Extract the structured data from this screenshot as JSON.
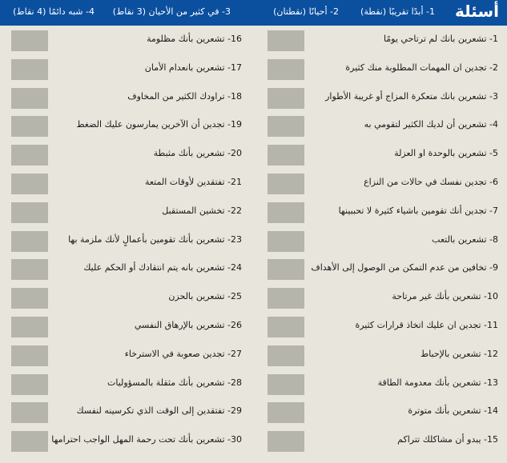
{
  "header": {
    "title": "أسئلة",
    "scale": [
      "1- أبدًا تقريبًا (نقطة)",
      "2- أحيانًا (نقطتان)",
      "3- في كثير من الأحيان (3 نقاط)",
      "4- شبه دائمًا (4 نقاط)"
    ]
  },
  "questions": [
    "1- تشعرين بانك لم ترتاحي يومًا",
    "2- تجدين ان المهمات المطلوبة منك كثيرة",
    "3- تشعرين بانك متعكرة المزاج أو غريبة الأطوار",
    "4- تشعرين أن لديك الكثير لتقومي به",
    "5- تشعرين بالوحدة او العزلة",
    "6- تجدين نفسك في حالات من النزاع",
    "7- تجدين أنك تقومين باشياء كثيرة لا تحببينها",
    "8- تشعرين بالتعب",
    "9- تخافين من عدم التمكن من الوصول إلى الأهداف",
    "10- تشعرين بأنك غير مرتاحة",
    "11- تجدين ان عليك اتخاذ قرارات كثيرة",
    "12- تشعرين بالإحباط",
    "13- تشعرين بأنك معدومة الطاقة",
    "14- تشعرين بأنك متوترة",
    "15- يبدو أن مشاكلك تتراكم",
    "16- تشعرين بأنك مظلومة",
    "17- تشعرين بانعدام الأمان",
    "18- تراودك الكثير من المخاوف",
    "19- تجدين أن الآخرين يمارسون عليك الضغط",
    "20- تشعرين بأنك مثبطة",
    "21- تفتقدين لأوقات المتعة",
    "22- تخشين المستقبل",
    "23- تشعرين بأنك تقومين بأعمالٍ لأنك ملزمة بها",
    "24- تشعرين بانه يتم انتقادك أو الحكم عليك",
    "25- تشعرين بالحزن",
    "26- تشعرين بالإرهاق النفسي",
    "27- تجدين صعوبة في الاسترخاء",
    "28- تشعرين بأنك مثقلة بالمسؤوليات",
    "29- تفتقدين إلى الوقت الذي تكرسينه لنفسك",
    "30- تشعرين بأنك تحت رحمة المهل الواجب احترامها"
  ],
  "colors": {
    "header": "#0b4f9f",
    "background": "#e8e5dc",
    "answer_box": "#b6b5ab"
  }
}
